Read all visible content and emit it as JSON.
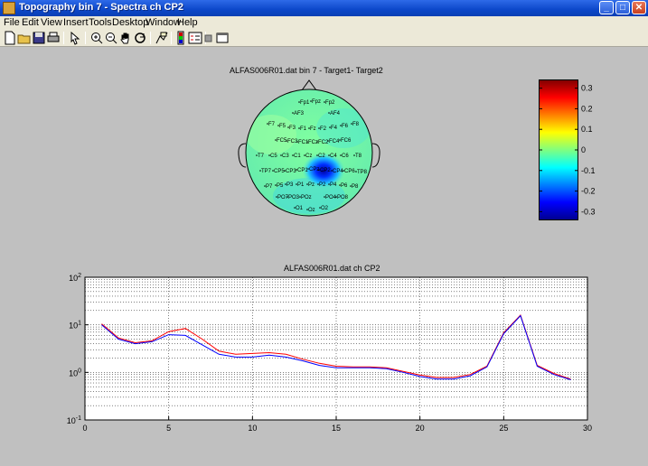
{
  "window": {
    "title": "Topography bin 7 - Spectra ch CP2",
    "minimize_label": "_",
    "maximize_label": "□",
    "close_label": "✕"
  },
  "menu": [
    "File",
    "Edit",
    "View",
    "Insert",
    "Tools",
    "Desktop",
    "Window",
    "Help"
  ],
  "toolbar_icons": [
    "new-file-icon",
    "open-folder-icon",
    "save-icon",
    "print-icon",
    "pointer-icon",
    "zoom-in-icon",
    "zoom-out-icon",
    "pan-hand-icon",
    "rotate-icon",
    "data-cursor-icon",
    "colorbar-icon",
    "legend-icon",
    "hide-plot-tools-icon",
    "show-plot-tools-icon"
  ],
  "topoplot": {
    "title": "ALFAS006R01.dat   bin 7 - Target1- Target2",
    "electrodes": [
      "Fp1",
      "Fpz",
      "Fp2",
      "AF3",
      "AF4",
      "F7",
      "F5",
      "F3",
      "F1",
      "Fz",
      "F2",
      "F4",
      "F6",
      "F8",
      "FC5",
      "FC3",
      "FC1",
      "FCz",
      "FC2",
      "FC4",
      "FC6",
      "T7",
      "C5",
      "C3",
      "C1",
      "Cz",
      "C2",
      "C4",
      "C6",
      "T8",
      "TP7",
      "CP5",
      "CP3",
      "CP1",
      "CPz",
      "CP2",
      "CP4",
      "CP6",
      "TP8",
      "P7",
      "P5",
      "P3",
      "P1",
      "Pz",
      "P2",
      "P4",
      "P6",
      "P8",
      "PO7",
      "PO3",
      "POz",
      "PO4",
      "PO8",
      "O1",
      "Oz",
      "O2"
    ],
    "colorbar": {
      "ticks": [
        "0.3",
        "0.2",
        "0.1",
        "0",
        "-0.1",
        "-0.2",
        "-0.3"
      ],
      "tick_values": [
        0.3,
        0.2,
        0.1,
        0,
        -0.1,
        -0.2,
        -0.3
      ],
      "min": -0.34,
      "max": 0.34
    }
  },
  "chart_data": {
    "type": "line",
    "title": "ALFAS006R01.dat  ch CP2",
    "xlim": [
      0,
      30
    ],
    "ylim": [
      0.1,
      100
    ],
    "y_scale": "log",
    "grid": true,
    "x_ticks": [
      "0",
      "5",
      "10",
      "15",
      "20",
      "25",
      "30"
    ],
    "y_ticks": [
      "10",
      "10",
      "10",
      "10"
    ],
    "y_tick_exponents": [
      "2",
      "1",
      "0",
      "-1"
    ],
    "x": [
      1,
      2,
      3,
      4,
      5,
      6,
      7,
      8,
      9,
      10,
      11,
      12,
      13,
      14,
      15,
      16,
      17,
      18,
      19,
      20,
      21,
      22,
      23,
      24,
      25,
      26,
      27,
      28,
      29
    ],
    "series": [
      {
        "color": "#ff0000",
        "values": [
          10.5,
          5.3,
          4.2,
          4.6,
          7.2,
          8.4,
          5.0,
          2.8,
          2.4,
          2.5,
          2.6,
          2.4,
          1.9,
          1.55,
          1.35,
          1.3,
          1.3,
          1.25,
          1.05,
          0.88,
          0.78,
          0.78,
          0.9,
          1.35,
          6.8,
          16.0,
          1.4,
          0.95,
          0.72
        ]
      },
      {
        "color": "#0000ff",
        "values": [
          10.0,
          5.0,
          4.0,
          4.4,
          6.2,
          6.0,
          3.8,
          2.4,
          2.1,
          2.1,
          2.3,
          2.1,
          1.75,
          1.4,
          1.25,
          1.25,
          1.25,
          1.2,
          1.0,
          0.82,
          0.72,
          0.72,
          0.85,
          1.3,
          6.5,
          15.5,
          1.35,
          0.9,
          0.7
        ]
      }
    ]
  }
}
